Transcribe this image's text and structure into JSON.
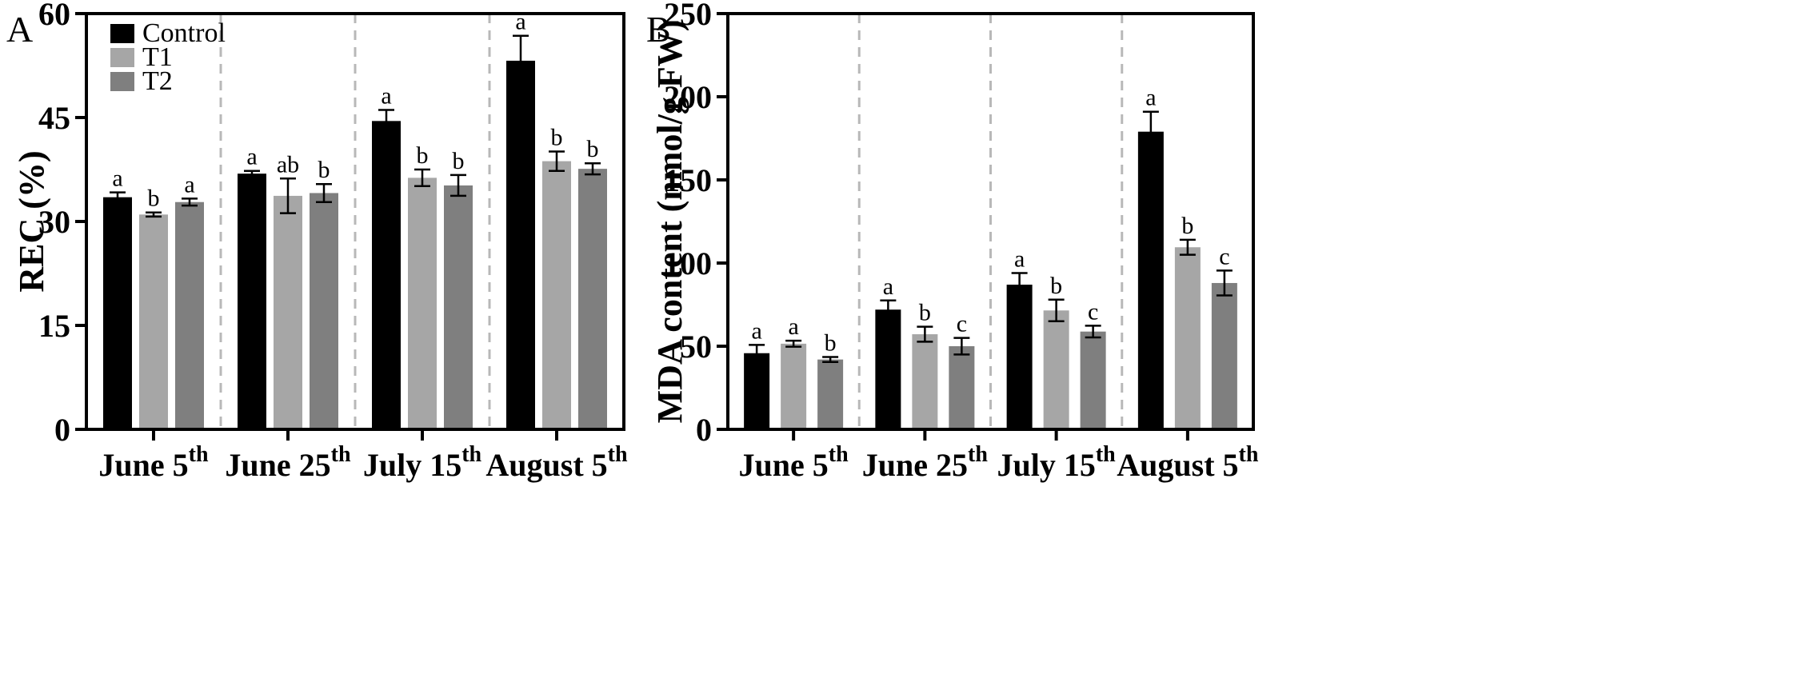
{
  "chart_data": [
    {
      "panel": "A",
      "type": "bar",
      "title": "",
      "xlabel": "",
      "ylabel": "REC (%)",
      "ylim": [
        0,
        60
      ],
      "yticks": [
        0,
        15,
        30,
        45,
        60
      ],
      "categories": [
        {
          "main": "June 5",
          "sup": "th"
        },
        {
          "main": "June 25",
          "sup": "th"
        },
        {
          "main": "July 15",
          "sup": "th"
        },
        {
          "main": "August 5",
          "sup": "th"
        }
      ],
      "series": [
        {
          "name": "Control",
          "color": "#000000",
          "values": [
            33.5,
            36.9,
            44.5,
            53.2
          ],
          "errors": [
            0.7,
            0.4,
            1.6,
            3.6
          ],
          "labels": [
            "a",
            "a",
            "a",
            "a"
          ]
        },
        {
          "name": "T1",
          "color": "#a6a6a6",
          "values": [
            31.0,
            33.7,
            36.3,
            38.7
          ],
          "errors": [
            0.3,
            2.5,
            1.2,
            1.4
          ],
          "labels": [
            "b",
            "ab",
            "b",
            "b"
          ]
        },
        {
          "name": "T2",
          "color": "#7f7f7f",
          "values": [
            32.8,
            34.1,
            35.2,
            37.6
          ],
          "errors": [
            0.5,
            1.3,
            1.5,
            0.8
          ],
          "labels": [
            "a",
            "b",
            "b",
            "b"
          ]
        }
      ],
      "legend": "top-left",
      "grid": false,
      "separators": "dashed vertical lines between categories"
    },
    {
      "panel": "B",
      "type": "bar",
      "title": "",
      "xlabel": "",
      "ylabel": "MDA content (nmol/g FW)",
      "ylim": [
        0,
        250
      ],
      "yticks": [
        0,
        50,
        100,
        150,
        200,
        250
      ],
      "categories": [
        {
          "main": "June 5",
          "sup": "th"
        },
        {
          "main": "June 25",
          "sup": "th"
        },
        {
          "main": "July 15",
          "sup": "th"
        },
        {
          "main": "August 5",
          "sup": "th"
        }
      ],
      "series": [
        {
          "name": "Control",
          "color": "#000000",
          "values": [
            45.8,
            72.0,
            87.0,
            179.0
          ],
          "errors": [
            5.0,
            5.5,
            7.0,
            12.0
          ],
          "labels": [
            "a",
            "a",
            "a",
            "a"
          ]
        },
        {
          "name": "T1",
          "color": "#a6a6a6",
          "values": [
            51.5,
            57.2,
            71.5,
            109.5
          ],
          "errors": [
            1.8,
            4.5,
            6.5,
            4.5
          ],
          "labels": [
            "a",
            "b",
            "b",
            "b"
          ]
        },
        {
          "name": "T2",
          "color": "#7f7f7f",
          "values": [
            42.0,
            50.0,
            58.8,
            88.0
          ],
          "errors": [
            1.5,
            5.0,
            3.5,
            7.5
          ],
          "labels": [
            "b",
            "c",
            "c",
            "c"
          ]
        }
      ],
      "legend": "none",
      "grid": false,
      "separators": "dashed vertical lines between categories"
    }
  ]
}
